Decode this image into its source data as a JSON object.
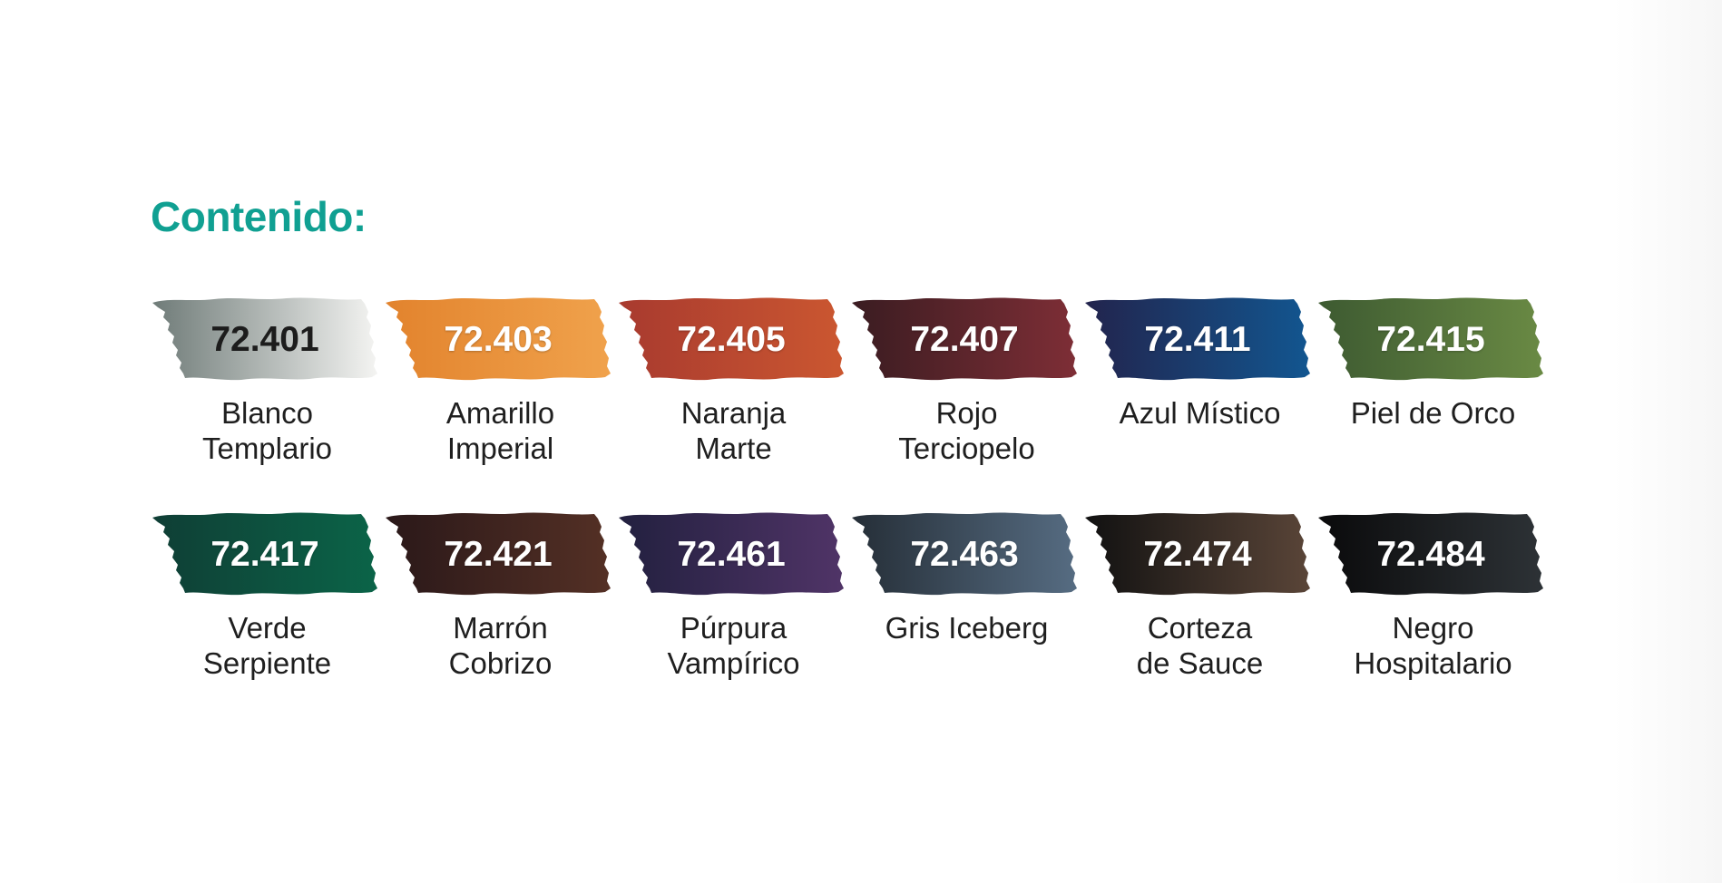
{
  "title": "Contenido:",
  "paints": [
    {
      "code": "72.401",
      "name": "Blanco\nTemplario",
      "from": "#6f7b78",
      "to": "#f4f4f2",
      "dark_text": true
    },
    {
      "code": "72.403",
      "name": "Amarillo\nImperial",
      "from": "#e2832d",
      "to": "#f0a24c",
      "dark_text": false
    },
    {
      "code": "72.405",
      "name": "Naranja\nMarte",
      "from": "#a83a2f",
      "to": "#cb5730",
      "dark_text": false
    },
    {
      "code": "72.407",
      "name": "Rojo\nTerciopelo",
      "from": "#3a1c21",
      "to": "#7e2e36",
      "dark_text": false
    },
    {
      "code": "72.411",
      "name": "Azul Místico",
      "from": "#22244d",
      "to": "#125690",
      "dark_text": false
    },
    {
      "code": "72.415",
      "name": "Piel de Orco",
      "from": "#3d5a31",
      "to": "#6a8a44",
      "dark_text": false
    },
    {
      "code": "72.417",
      "name": "Verde\nSerpiente",
      "from": "#0f3e35",
      "to": "#0b6448",
      "dark_text": false
    },
    {
      "code": "72.421",
      "name": "Marrón\nCobrizo",
      "from": "#2a1819",
      "to": "#543025",
      "dark_text": false
    },
    {
      "code": "72.461",
      "name": "Púrpura\nVampírico",
      "from": "#22203f",
      "to": "#503467",
      "dark_text": false
    },
    {
      "code": "72.463",
      "name": "Gris Iceberg",
      "from": "#252e37",
      "to": "#566c82",
      "dark_text": false
    },
    {
      "code": "72.474",
      "name": "Corteza\nde Sauce",
      "from": "#111111",
      "to": "#5a4538",
      "dark_text": false
    },
    {
      "code": "72.484",
      "name": "Negro\nHospitalario",
      "from": "#0a0a0b",
      "to": "#2d3236",
      "dark_text": false
    }
  ]
}
